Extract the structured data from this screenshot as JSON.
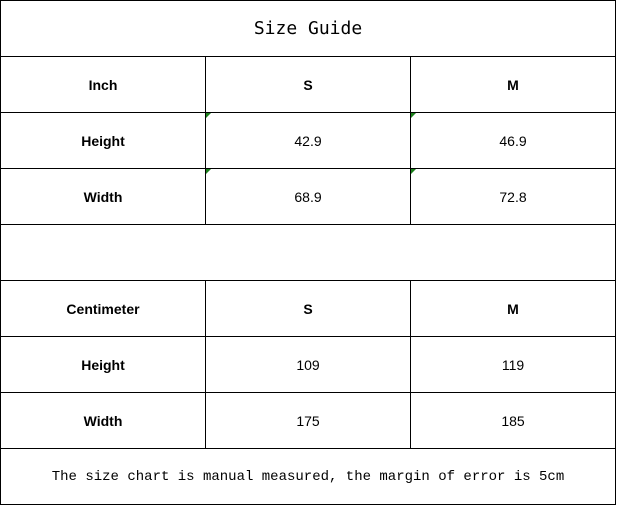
{
  "title": "Size Guide",
  "inch": {
    "header": [
      "Inch",
      "S",
      "M"
    ],
    "rows": [
      {
        "label": "Height",
        "s": "42.9",
        "m": "46.9"
      },
      {
        "label": "Width",
        "s": "68.9",
        "m": "72.8"
      }
    ]
  },
  "cm": {
    "header": [
      "Centimeter",
      "S",
      "M"
    ],
    "rows": [
      {
        "label": "Height",
        "s": "109",
        "m": "119"
      },
      {
        "label": "Width",
        "s": "175",
        "m": "185"
      }
    ]
  },
  "note": "The size chart is manual measured, the margin of error is 5cm",
  "colors": {
    "cell_marker": "#1a7f1a"
  }
}
